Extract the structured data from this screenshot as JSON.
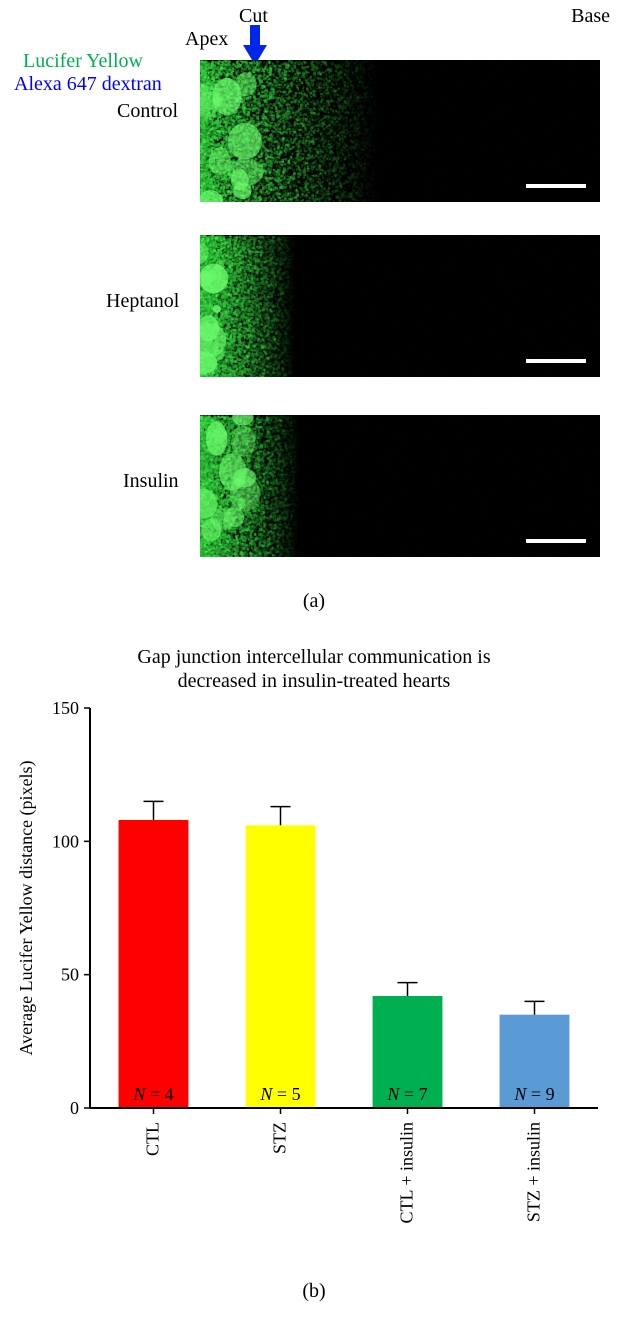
{
  "panelA": {
    "topLabels": {
      "cut": "Cut",
      "apex": "Apex",
      "base": "Base"
    },
    "dyes": {
      "lucifer": "Lucifer Yellow",
      "dextran": "Alexa 647 dextran"
    },
    "rows": {
      "control": "Control",
      "heptanol": "Heptanol",
      "insulin": "Insulin"
    },
    "arrowColor": "#0026e8",
    "tag": "(a)"
  },
  "chart": {
    "title_line1": "Gap junction intercellular communication is",
    "title_line2": "decreased in insulin-treated hearts",
    "ylabel": "Average Lucifer Yellow distance (pixels)",
    "ylim": [
      0,
      150
    ],
    "yticks": [
      0,
      50,
      100,
      150
    ],
    "categories": [
      "CTL",
      "STZ",
      "CTL + insulin",
      "STZ + insulin"
    ],
    "values": [
      108,
      106,
      42,
      35
    ],
    "errors": [
      7,
      7,
      5,
      5
    ],
    "n_values": [
      4,
      5,
      7,
      9
    ],
    "bar_colors": [
      "#ff0000",
      "#ffff00",
      "#00b050",
      "#5b9bd5"
    ],
    "bar_width_ratio": 0.55,
    "plot_bg": "#ffffff",
    "axis_color": "#000000",
    "label_fontsize": 18,
    "n_fontsize": 18
  },
  "panelB": {
    "tag": "(b)"
  }
}
